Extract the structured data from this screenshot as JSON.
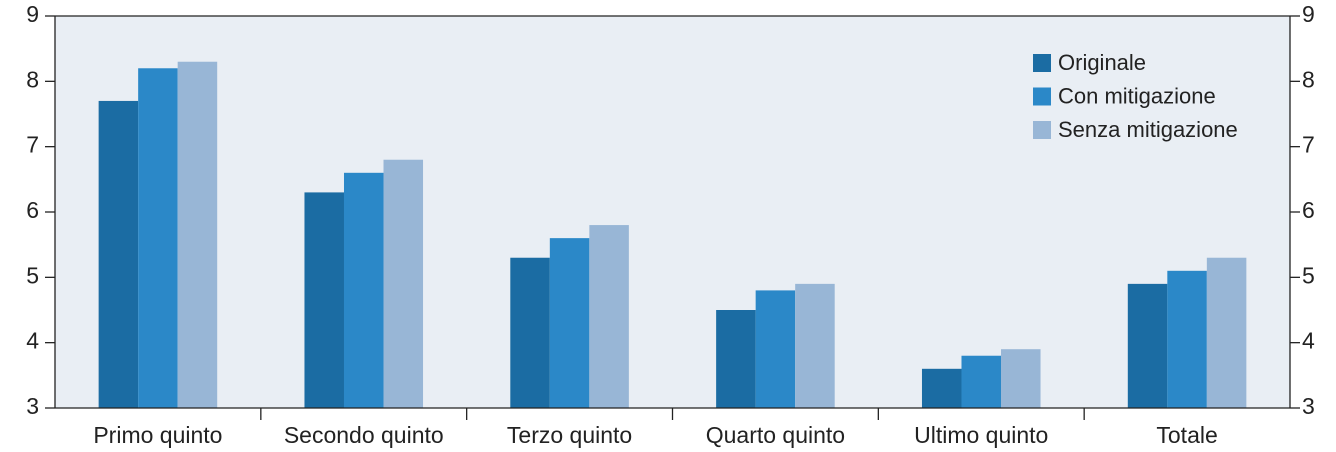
{
  "chart_data": {
    "type": "bar",
    "categories": [
      "Primo quinto",
      "Secondo quinto",
      "Terzo quinto",
      "Quarto quinto",
      "Ultimo quinto",
      "Totale"
    ],
    "series": [
      {
        "name": "Originale",
        "color": "#1b6ca3",
        "values": [
          7.7,
          6.3,
          5.3,
          4.5,
          3.6,
          4.9
        ]
      },
      {
        "name": "Con mitigazione",
        "color": "#2b88c8",
        "values": [
          8.2,
          6.6,
          5.6,
          4.8,
          3.8,
          5.1
        ]
      },
      {
        "name": "Senza mitigazione",
        "color": "#98b6d6",
        "values": [
          8.3,
          6.8,
          5.8,
          4.9,
          3.9,
          5.3
        ]
      }
    ],
    "ylim": [
      3,
      9
    ],
    "yticks": [
      3,
      4,
      5,
      6,
      7,
      8,
      9
    ],
    "y2lim": [
      3,
      9
    ],
    "y2ticks": [
      3,
      4,
      5,
      6,
      7,
      8,
      9
    ],
    "legend": "upper right",
    "grid": false
  }
}
